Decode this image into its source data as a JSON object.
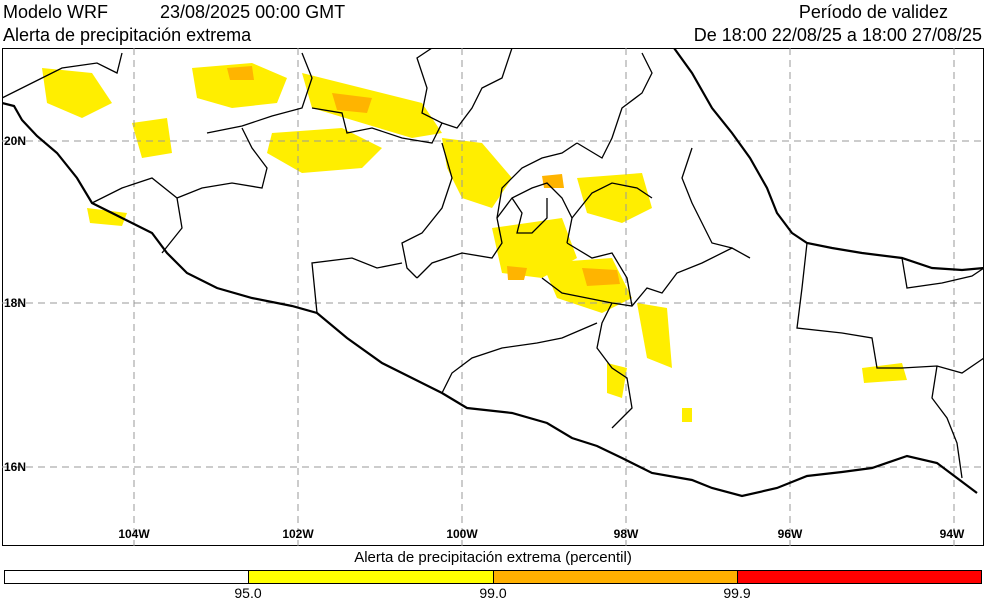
{
  "header": {
    "model": "Modelo WRF",
    "datetime": "23/08/2025 00:00 GMT",
    "subtitle": "Alerta de precipitación extrema",
    "validity_title": "Período de validez",
    "validity_range": "De 18:00 22/08/25 a 18:00 27/08/25"
  },
  "map": {
    "lon_range": [
      -105.5,
      -93.6
    ],
    "lat_range": [
      15.2,
      20.9
    ],
    "lon_labels": [
      "104W",
      "102W",
      "100W",
      "98W",
      "96W",
      "94W"
    ],
    "lat_labels": [
      "20N",
      "18N",
      "16N"
    ],
    "grid": true
  },
  "legend": {
    "title": "Alerta de precipitación extrema (percentil)",
    "ticks": [
      "95.0",
      "99.0",
      "99.9"
    ],
    "colors": [
      "#ffffff",
      "#ffff00",
      "#ffb000",
      "#ff0000"
    ]
  }
}
